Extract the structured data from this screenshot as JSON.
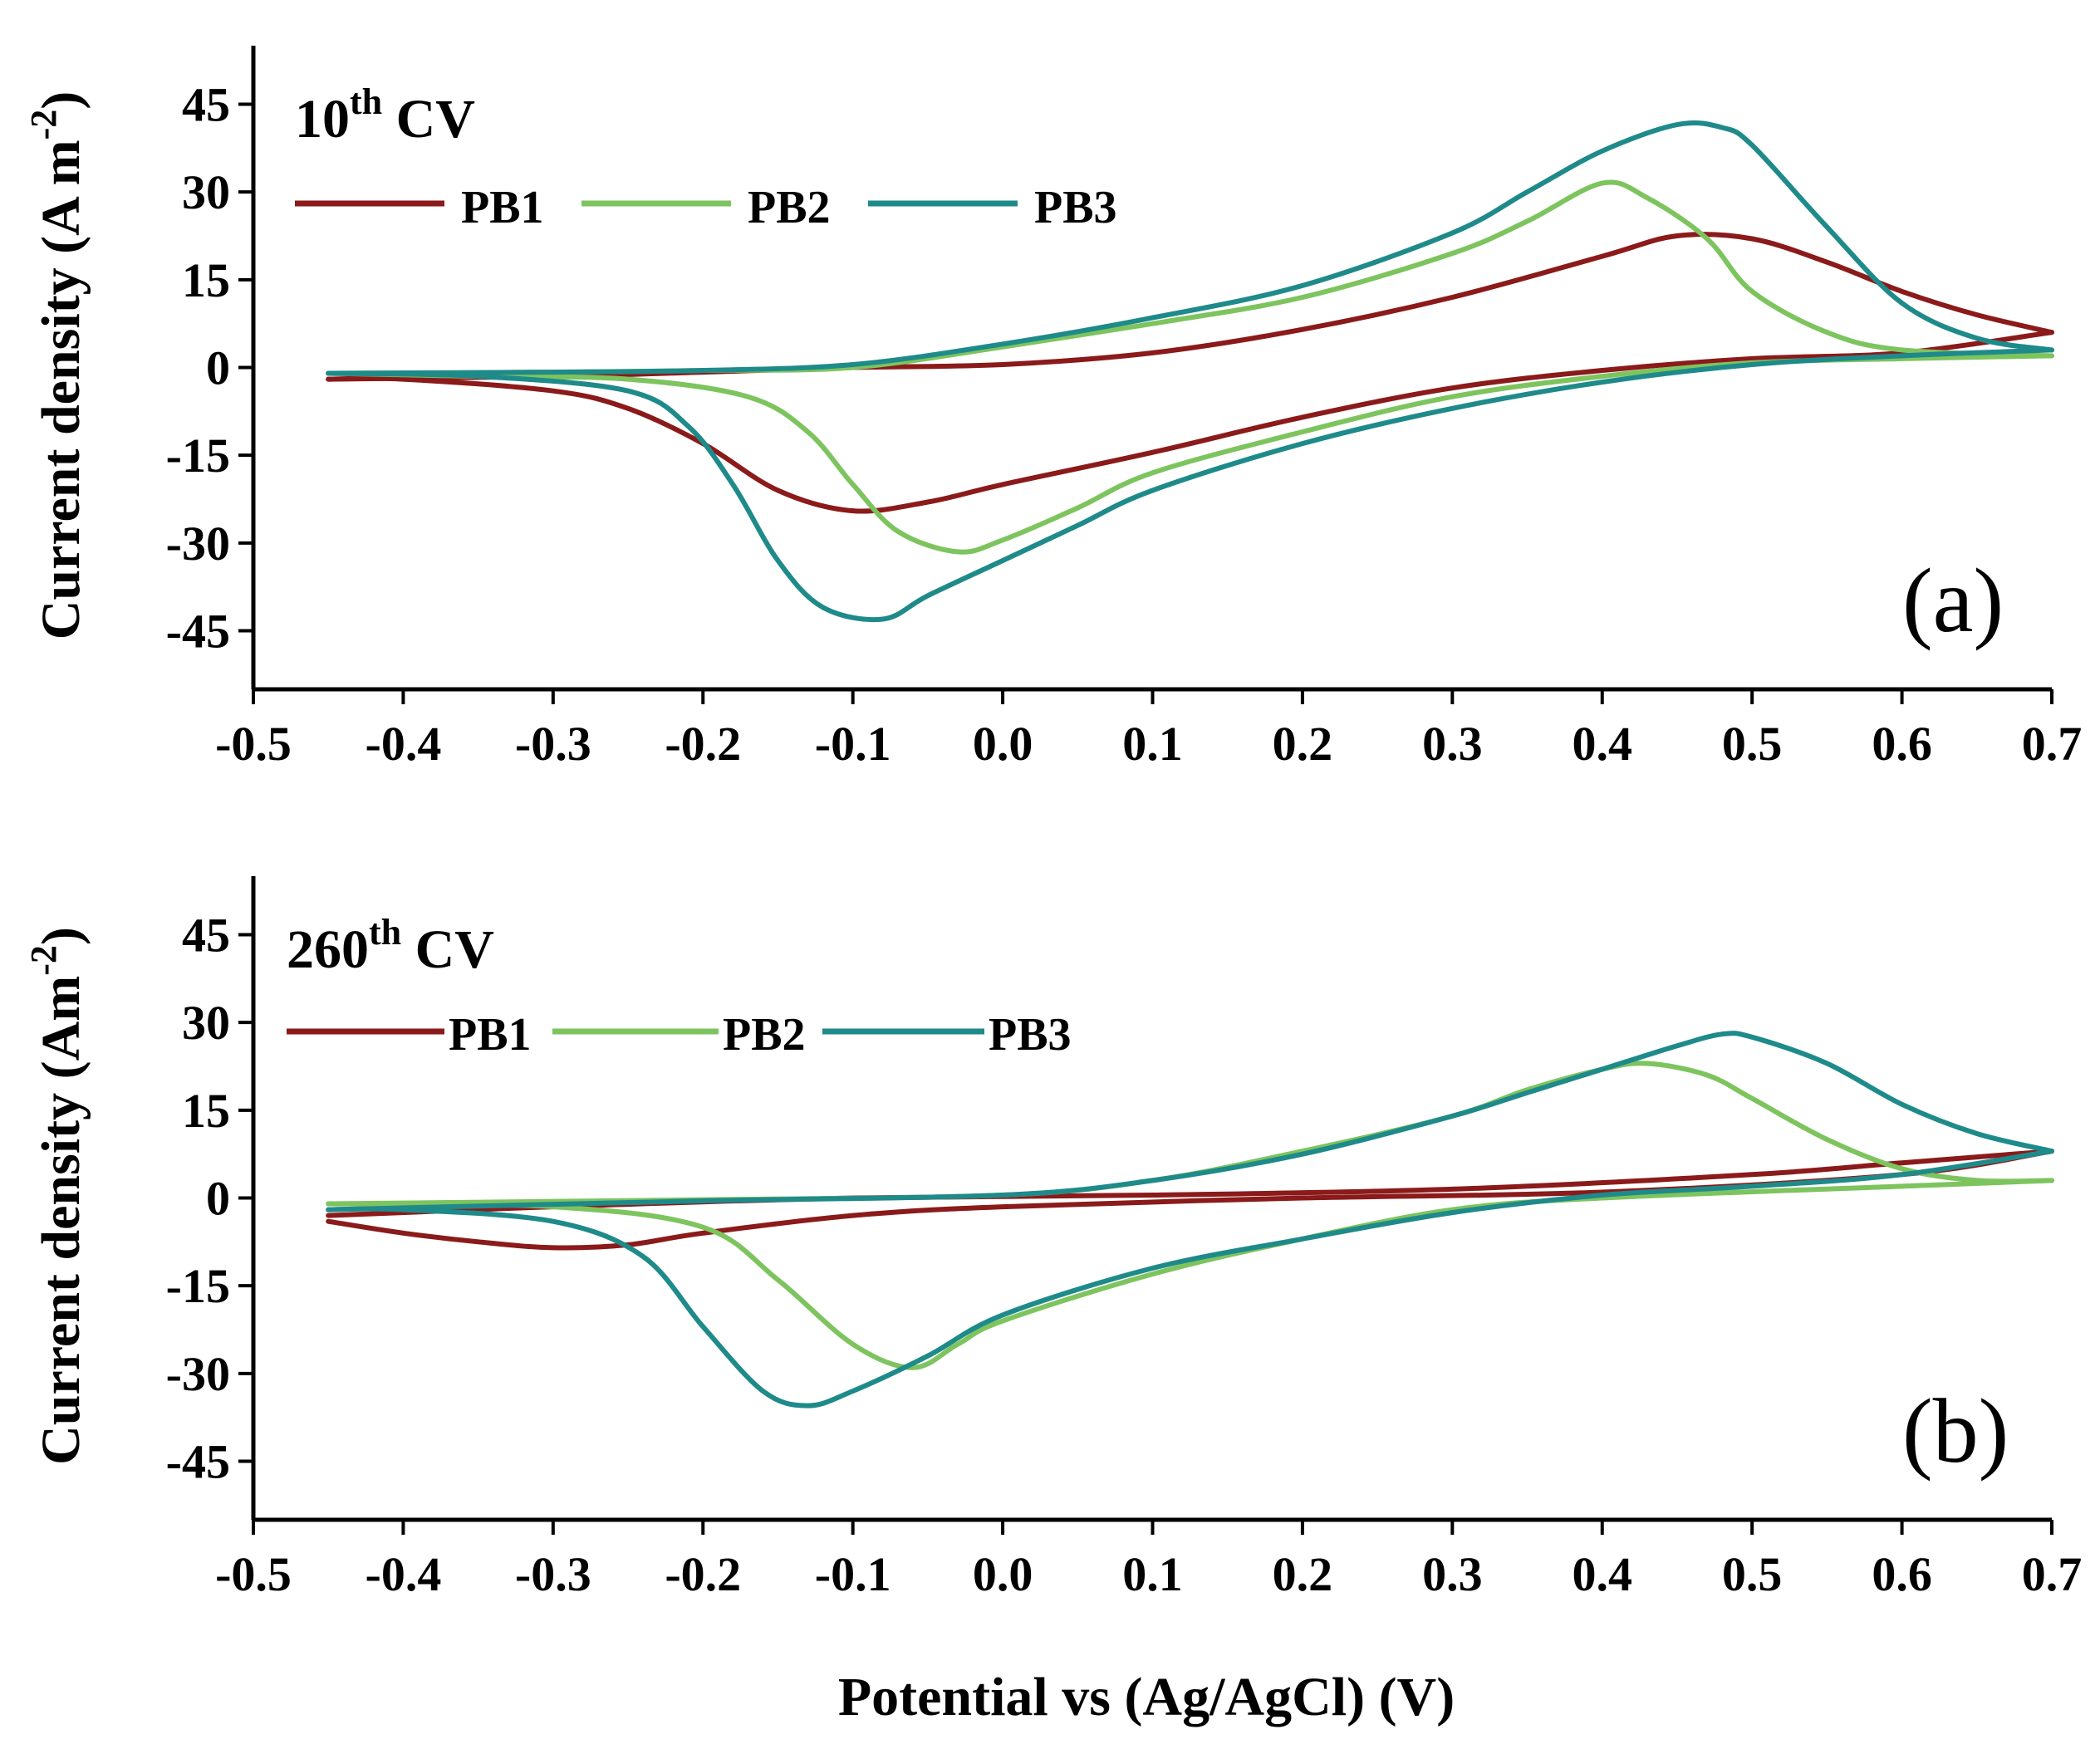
{
  "colors": {
    "PB1": "#8b1a1a",
    "PB2": "#7dc45f",
    "PB3": "#1f8a8a"
  },
  "xlabel": "Potential vs (Ag/AgCl) (V)",
  "chart_data": [
    {
      "type": "line",
      "panel_letter": "(a)",
      "title": {
        "prefix": "10",
        "sup": "th",
        "suffix": " CV"
      },
      "ylabel": {
        "main": "Current density (A m",
        "sup": "-2",
        "close": ")"
      },
      "xlim": [
        -0.5,
        0.7
      ],
      "ylim": [
        -55,
        55
      ],
      "xticks": [
        -0.5,
        -0.4,
        -0.3,
        -0.2,
        -0.1,
        0.0,
        0.1,
        0.2,
        0.3,
        0.4,
        0.5,
        0.6,
        0.7
      ],
      "xtick_labels": [
        "-0.5",
        "-0.4",
        "-0.3",
        "-0.2",
        "-0.1",
        "0.0",
        "0.1",
        "0.2",
        "0.3",
        "0.4",
        "0.5",
        "0.6",
        "0.7"
      ],
      "yticks": [
        -45,
        -30,
        -15,
        0,
        15,
        30,
        45
      ],
      "ytick_labels": [
        "-45",
        "-30",
        "-15",
        "0",
        "15",
        "30",
        "45"
      ],
      "legend": [
        "PB1",
        "PB2",
        "PB3"
      ],
      "series": [
        {
          "name": "PB1",
          "forward": [
            [
              -0.45,
              -2
            ],
            [
              -0.3,
              -1.5
            ],
            [
              -0.2,
              -0.8
            ],
            [
              -0.1,
              0
            ],
            [
              0.0,
              0.5
            ],
            [
              0.1,
              2.5
            ],
            [
              0.2,
              6.5
            ],
            [
              0.3,
              12
            ],
            [
              0.4,
              19
            ],
            [
              0.45,
              22.5
            ],
            [
              0.5,
              22
            ],
            [
              0.55,
              18
            ],
            [
              0.6,
              13
            ],
            [
              0.65,
              9
            ],
            [
              0.7,
              6
            ]
          ],
          "reverse": [
            [
              0.7,
              6
            ],
            [
              0.6,
              2.5
            ],
            [
              0.5,
              1.5
            ],
            [
              0.4,
              -0.5
            ],
            [
              0.3,
              -3.5
            ],
            [
              0.2,
              -8.5
            ],
            [
              0.1,
              -14.5
            ],
            [
              0.0,
              -20
            ],
            [
              -0.05,
              -23
            ],
            [
              -0.1,
              -24.5
            ],
            [
              -0.15,
              -21
            ],
            [
              -0.2,
              -13
            ],
            [
              -0.25,
              -7
            ],
            [
              -0.3,
              -4
            ],
            [
              -0.4,
              -2
            ],
            [
              -0.45,
              -2
            ]
          ]
        },
        {
          "name": "PB2",
          "forward": [
            [
              -0.45,
              -1
            ],
            [
              -0.3,
              -0.8
            ],
            [
              -0.2,
              -0.5
            ],
            [
              -0.1,
              0
            ],
            [
              0.0,
              3.5
            ],
            [
              0.1,
              7.5
            ],
            [
              0.2,
              12
            ],
            [
              0.3,
              19.5
            ],
            [
              0.35,
              25
            ],
            [
              0.4,
              31.5
            ],
            [
              0.43,
              29
            ],
            [
              0.47,
              22
            ],
            [
              0.5,
              13
            ],
            [
              0.55,
              6
            ],
            [
              0.6,
              3
            ],
            [
              0.7,
              2
            ]
          ],
          "reverse": [
            [
              0.7,
              2
            ],
            [
              0.6,
              1.5
            ],
            [
              0.5,
              0.8
            ],
            [
              0.4,
              -1.5
            ],
            [
              0.3,
              -5
            ],
            [
              0.2,
              -11
            ],
            [
              0.1,
              -18
            ],
            [
              0.05,
              -24
            ],
            [
              0.0,
              -29.5
            ],
            [
              -0.03,
              -31.5
            ],
            [
              -0.07,
              -28
            ],
            [
              -0.1,
              -20
            ],
            [
              -0.13,
              -11
            ],
            [
              -0.17,
              -5
            ],
            [
              -0.25,
              -2
            ],
            [
              -0.35,
              -1.5
            ],
            [
              -0.45,
              -1
            ]
          ]
        },
        {
          "name": "PB3",
          "forward": [
            [
              -0.45,
              -1
            ],
            [
              -0.3,
              -0.8
            ],
            [
              -0.2,
              -0.5
            ],
            [
              -0.1,
              0.5
            ],
            [
              0.0,
              4
            ],
            [
              0.1,
              8.5
            ],
            [
              0.2,
              14
            ],
            [
              0.3,
              23
            ],
            [
              0.35,
              30
            ],
            [
              0.4,
              37
            ],
            [
              0.45,
              41.5
            ],
            [
              0.48,
              41
            ],
            [
              0.5,
              38
            ],
            [
              0.55,
              24
            ],
            [
              0.6,
              11
            ],
            [
              0.65,
              5
            ],
            [
              0.7,
              3
            ]
          ],
          "reverse": [
            [
              0.7,
              3
            ],
            [
              0.6,
              2
            ],
            [
              0.5,
              0.5
            ],
            [
              0.4,
              -2.5
            ],
            [
              0.3,
              -7
            ],
            [
              0.2,
              -13
            ],
            [
              0.1,
              -21
            ],
            [
              0.05,
              -27
            ],
            [
              0.0,
              -33
            ],
            [
              -0.05,
              -39
            ],
            [
              -0.08,
              -43
            ],
            [
              -0.12,
              -41
            ],
            [
              -0.15,
              -33
            ],
            [
              -0.18,
              -20
            ],
            [
              -0.21,
              -10
            ],
            [
              -0.25,
              -4
            ],
            [
              -0.35,
              -1.5
            ],
            [
              -0.45,
              -1
            ]
          ]
        }
      ]
    },
    {
      "type": "line",
      "panel_letter": "(b)",
      "title": {
        "prefix": "260",
        "sup": "th",
        "suffix": " CV"
      },
      "ylabel": {
        "main": "Current density (Am",
        "sup": "-2",
        "close": ")"
      },
      "xlim": [
        -0.5,
        0.7
      ],
      "ylim": [
        -55,
        55
      ],
      "xticks": [
        -0.5,
        -0.4,
        -0.3,
        -0.2,
        -0.1,
        0.0,
        0.1,
        0.2,
        0.3,
        0.4,
        0.5,
        0.6,
        0.7
      ],
      "xtick_labels": [
        "-0.5",
        "-0.4",
        "-0.3",
        "-0.2",
        "-0.1",
        "0.0",
        "0.1",
        "0.2",
        "0.3",
        "0.4",
        "0.5",
        "0.6",
        "0.7"
      ],
      "yticks": [
        -45,
        -30,
        -15,
        0,
        15,
        30,
        45
      ],
      "ytick_labels": [
        "-45",
        "-30",
        "-15",
        "0",
        "15",
        "30",
        "45"
      ],
      "legend": [
        "PB1",
        "PB2",
        "PB3"
      ],
      "series": [
        {
          "name": "PB1",
          "forward": [
            [
              -0.45,
              -3
            ],
            [
              -0.3,
              -1.5
            ],
            [
              -0.1,
              0
            ],
            [
              0.1,
              0.5
            ],
            [
              0.3,
              1.5
            ],
            [
              0.5,
              4
            ],
            [
              0.6,
              6
            ],
            [
              0.7,
              8
            ]
          ],
          "reverse": [
            [
              0.7,
              8
            ],
            [
              0.6,
              4
            ],
            [
              0.4,
              1
            ],
            [
              0.2,
              0
            ],
            [
              0.0,
              -1.5
            ],
            [
              -0.1,
              -3
            ],
            [
              -0.2,
              -6
            ],
            [
              -0.25,
              -8
            ],
            [
              -0.3,
              -8.5
            ],
            [
              -0.35,
              -7.5
            ],
            [
              -0.4,
              -6
            ],
            [
              -0.45,
              -4
            ]
          ]
        },
        {
          "name": "PB2",
          "forward": [
            [
              -0.45,
              -1
            ],
            [
              -0.2,
              -0.3
            ],
            [
              0.0,
              0.5
            ],
            [
              0.1,
              3
            ],
            [
              0.2,
              8
            ],
            [
              0.3,
              14
            ],
            [
              0.35,
              18.5
            ],
            [
              0.4,
              22
            ],
            [
              0.43,
              23
            ],
            [
              0.47,
              21
            ],
            [
              0.5,
              17
            ],
            [
              0.55,
              10
            ],
            [
              0.6,
              5
            ],
            [
              0.65,
              3
            ],
            [
              0.7,
              3
            ]
          ],
          "reverse": [
            [
              0.7,
              3
            ],
            [
              0.6,
              2
            ],
            [
              0.4,
              0
            ],
            [
              0.3,
              -2
            ],
            [
              0.2,
              -7
            ],
            [
              0.1,
              -13
            ],
            [
              0.0,
              -21
            ],
            [
              -0.03,
              -25
            ],
            [
              -0.06,
              -29
            ],
            [
              -0.1,
              -25
            ],
            [
              -0.15,
              -14
            ],
            [
              -0.2,
              -5
            ],
            [
              -0.3,
              -1.5
            ],
            [
              -0.45,
              -1
            ]
          ]
        },
        {
          "name": "PB3",
          "forward": [
            [
              -0.45,
              -2
            ],
            [
              -0.2,
              -0.5
            ],
            [
              0.0,
              0.5
            ],
            [
              0.1,
              3
            ],
            [
              0.2,
              7.5
            ],
            [
              0.3,
              14
            ],
            [
              0.35,
              18
            ],
            [
              0.4,
              22
            ],
            [
              0.45,
              26
            ],
            [
              0.48,
              28
            ],
            [
              0.5,
              27.5
            ],
            [
              0.55,
              23
            ],
            [
              0.6,
              16
            ],
            [
              0.65,
              11
            ],
            [
              0.7,
              8
            ]
          ],
          "reverse": [
            [
              0.7,
              8
            ],
            [
              0.6,
              4
            ],
            [
              0.5,
              2
            ],
            [
              0.4,
              0.5
            ],
            [
              0.3,
              -2.5
            ],
            [
              0.2,
              -7
            ],
            [
              0.1,
              -12
            ],
            [
              0.0,
              -20
            ],
            [
              -0.05,
              -27
            ],
            [
              -0.1,
              -33
            ],
            [
              -0.13,
              -35.5
            ],
            [
              -0.16,
              -33
            ],
            [
              -0.2,
              -22
            ],
            [
              -0.24,
              -10
            ],
            [
              -0.3,
              -4
            ],
            [
              -0.4,
              -2
            ],
            [
              -0.45,
              -2
            ]
          ]
        }
      ]
    }
  ]
}
